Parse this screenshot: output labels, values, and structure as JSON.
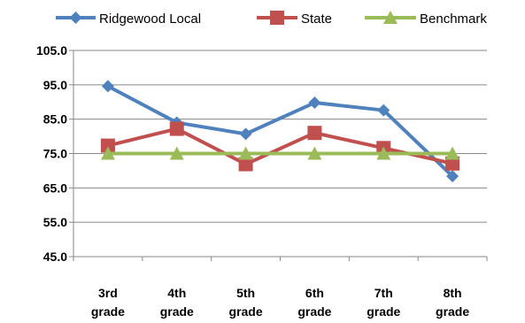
{
  "chart_data": {
    "type": "line",
    "title": "",
    "xlabel": "",
    "ylabel": "",
    "categories": [
      [
        "3rd",
        "grade"
      ],
      [
        "4th",
        "grade"
      ],
      [
        "5th",
        "grade"
      ],
      [
        "6th",
        "grade"
      ],
      [
        "7th",
        "grade"
      ],
      [
        "8th",
        "grade"
      ]
    ],
    "ylim": [
      45.0,
      105.0
    ],
    "yticks": [
      "105.0",
      "95.0",
      "85.0",
      "75.0",
      "65.0",
      "55.0",
      "45.0"
    ],
    "grid": "horizontal",
    "legend_position": "top",
    "series": [
      {
        "name": "Ridgewood Local",
        "color": "#4F81BD",
        "marker": "diamond",
        "values": [
          94.6,
          84.0,
          80.7,
          89.8,
          87.6,
          68.4
        ]
      },
      {
        "name": "State",
        "color": "#C0504D",
        "marker": "square",
        "values": [
          77.3,
          82.2,
          71.9,
          81.0,
          76.6,
          72.1
        ]
      },
      {
        "name": "Benchmark",
        "color": "#9BBB59",
        "marker": "triangle",
        "values": [
          75.0,
          75.0,
          75.0,
          75.0,
          75.0,
          75.0
        ]
      }
    ]
  }
}
